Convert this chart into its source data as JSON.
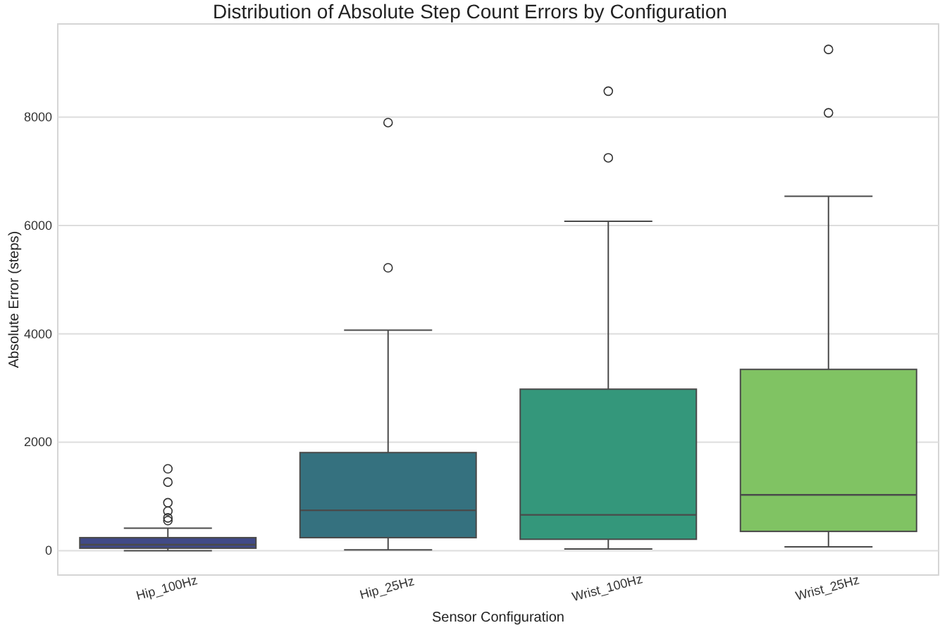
{
  "chart_data": {
    "type": "box",
    "title": "Distribution of Absolute Step Count Errors by Configuration",
    "xlabel": "Sensor Configuration",
    "ylabel": "Absolute Error (steps)",
    "categories": [
      "Hip_100Hz",
      "Hip_25Hz",
      "Wrist_100Hz",
      "Wrist_25Hz"
    ],
    "colors": [
      "#414a87",
      "#35717f",
      "#34977b",
      "#80c363"
    ],
    "boxes": [
      {
        "low": 0,
        "q1": 45,
        "median": 110,
        "q3": 240,
        "high": 415,
        "outliers": [
          1510,
          1265,
          885,
          730,
          605,
          555
        ]
      },
      {
        "low": 15,
        "q1": 240,
        "median": 745,
        "q3": 1810,
        "high": 4070,
        "outliers": [
          7900,
          5220
        ]
      },
      {
        "low": 30,
        "q1": 210,
        "median": 660,
        "q3": 2980,
        "high": 6080,
        "outliers": [
          8480,
          7250
        ]
      },
      {
        "low": 70,
        "q1": 355,
        "median": 1030,
        "q3": 3345,
        "high": 6540,
        "outliers": [
          9250,
          8080
        ]
      }
    ],
    "ylim": [
      -450,
      9720
    ],
    "yticks": [
      0,
      2000,
      4000,
      6000,
      8000
    ],
    "grid": "y"
  }
}
